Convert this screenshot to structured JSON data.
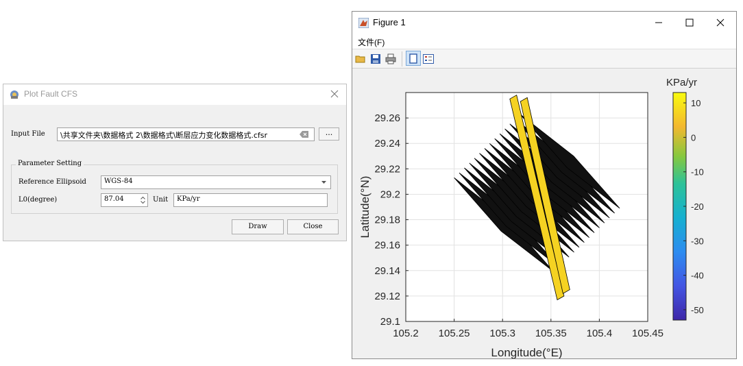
{
  "dialog": {
    "title": "Plot Fault CFS",
    "input_file_label": "Input File",
    "input_file_value": "\\共享文件夹\\数据格式 2\\数据格式\\断层应力变化数据格式.cfsr",
    "browse_label": "...",
    "group_title": "Parameter Setting",
    "ellipsoid_label": "Reference Ellipsoid",
    "ellipsoid_value": "WGS-84",
    "l0_label": "L0(degree)",
    "l0_value": "87.04",
    "unit_label": "Unit",
    "unit_value": "KPa/yr",
    "draw_label": "Draw",
    "close_label": "Close"
  },
  "figure": {
    "title": "Figure 1",
    "menu": [
      "文件(F)"
    ],
    "toolbar_icons": [
      "open-icon",
      "save-icon",
      "print-icon",
      "figure-icon",
      "legend-icon"
    ]
  },
  "chart_data": {
    "type": "patch-map",
    "xlabel": "Longitude(°E)",
    "ylabel": "Latitude(°N)",
    "xlim": [
      105.2,
      105.45
    ],
    "ylim": [
      29.1,
      29.28
    ],
    "xticks": [
      "105.2",
      "105.25",
      "105.3",
      "105.35",
      "105.4",
      "105.45"
    ],
    "yticks": [
      "29.1",
      "29.12",
      "29.14",
      "29.16",
      "29.18",
      "29.2",
      "29.22",
      "29.24",
      "29.26"
    ],
    "grid": true,
    "colorbar": {
      "label": "KPa/yr",
      "range": [
        -53,
        13
      ],
      "ticks": [
        "10",
        "0",
        "-10",
        "-20",
        "-30",
        "-40",
        "-50"
      ],
      "colormap": "parula"
    },
    "vertical_faults": [
      {
        "name": "",
        "x": [
          105.311,
          105.36
        ],
        "y": [
          29.275,
          29.12
        ],
        "value": 7
      },
      {
        "name": "",
        "x": [
          105.322,
          105.366
        ],
        "y": [
          29.273,
          29.125
        ],
        "value": 7
      }
    ],
    "dipping_planes": {
      "count": 14,
      "start_x": 105.25,
      "end_x": 105.318,
      "start_y": 29.213,
      "end_y": 29.263,
      "strike_dx": 0.103,
      "strike_dy": -0.074,
      "value": 0
    }
  }
}
